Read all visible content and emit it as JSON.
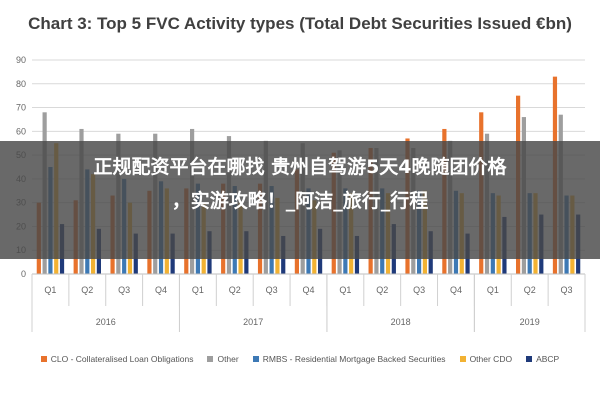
{
  "chart_data": {
    "type": "bar",
    "title": "Chart 3: Top 5 FVC Activity types (Total Debt Securities Issued €bn)",
    "categories": [
      "Q1",
      "Q2",
      "Q3",
      "Q4",
      "Q1",
      "Q2",
      "Q3",
      "Q4",
      "Q1",
      "Q2",
      "Q3",
      "Q4",
      "Q1",
      "Q2",
      "Q3"
    ],
    "years": [
      {
        "label": "2016",
        "start": 0,
        "count": 4
      },
      {
        "label": "2017",
        "start": 4,
        "count": 4
      },
      {
        "label": "2018",
        "start": 8,
        "count": 4
      },
      {
        "label": "2019",
        "start": 12,
        "count": 3
      }
    ],
    "ylim": [
      0,
      90
    ],
    "yticks": [
      0,
      10,
      20,
      30,
      40,
      50,
      60,
      70,
      80,
      90
    ],
    "grid": true,
    "legend_position": "bottom",
    "series": [
      {
        "name": "CLO - Collateralised Loan Obligations",
        "color": "#e8722c",
        "values": [
          30,
          31,
          33,
          35,
          36,
          38,
          38,
          44,
          51,
          53,
          57,
          61,
          68,
          75,
          83
        ]
      },
      {
        "name": "Other",
        "color": "#9e9e9e",
        "values": [
          68,
          61,
          59,
          59,
          61,
          58,
          56,
          55,
          52,
          53,
          53,
          56,
          59,
          66,
          67
        ]
      },
      {
        "name": "RMBS - Residential Mortgage Backed Securities",
        "color": "#3d79b5",
        "values": [
          45,
          44,
          40,
          39,
          38,
          37,
          37,
          36,
          36,
          36,
          35,
          35,
          34,
          34,
          33
        ]
      },
      {
        "name": "Other CDO",
        "color": "#f2b233",
        "values": [
          55,
          42,
          30,
          36,
          30,
          30,
          32,
          31,
          34,
          34,
          35,
          34,
          33,
          34,
          33
        ]
      },
      {
        "name": "ABCP",
        "color": "#1f3a7a",
        "values": [
          21,
          19,
          17,
          17,
          18,
          18,
          16,
          19,
          16,
          21,
          18,
          17,
          24,
          25,
          25
        ]
      }
    ]
  },
  "overlay": {
    "line1": "正规配资平台在哪找 贵州自驾游5天4晚随团价格",
    "line2": "，实游攻略！_阿洁_旅行_行程"
  }
}
